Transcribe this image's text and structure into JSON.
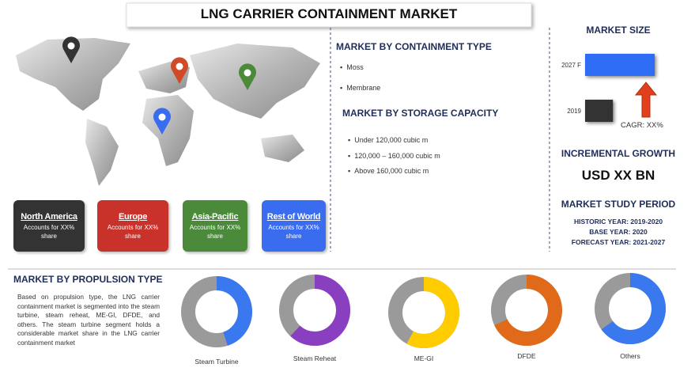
{
  "title": "LNG CARRIER CONTAINMENT MARKET",
  "regions": [
    {
      "name": "North America",
      "text": "Accounts for XX% share",
      "color": "#333333"
    },
    {
      "name": "Europe",
      "text": "Accounts for XX% share",
      "color": "#c8322a"
    },
    {
      "name": "Asia-Pacific",
      "text": "Accounts for XX% share",
      "color": "#4a8a3a"
    },
    {
      "name": "Rest of World",
      "text": "Accounts for XX% share",
      "color": "#3a6cf0"
    }
  ],
  "containment_type": {
    "heading": "MARKET BY CONTAINMENT TYPE",
    "items": [
      "Moss",
      "Membrane"
    ]
  },
  "storage_capacity": {
    "heading": "MARKET BY STORAGE CAPACITY",
    "items": [
      "Under 120,000 cubic m",
      "120,000 – 160,000 cubic m",
      "Above 160,000 cubic m"
    ]
  },
  "market_size": {
    "heading": "MARKET SIZE",
    "cagr": "CAGR: XX%",
    "chart_data": {
      "type": "bar",
      "categories": [
        "2027 F",
        "2019"
      ],
      "values": [
        100,
        40
      ],
      "xlim": [
        0,
        100
      ],
      "colors": [
        "#2f6cf5",
        "#333333"
      ]
    }
  },
  "incremental_growth": {
    "heading": "INCREMENTAL GROWTH",
    "value": "USD XX BN"
  },
  "study_period": {
    "heading": "MARKET STUDY PERIOD",
    "lines": [
      "HISTORIC YEAR: 2019-2020",
      "BASE YEAR: 2020",
      "FORECAST YEAR: 2021-2027"
    ]
  },
  "propulsion": {
    "heading": "MARKET BY PROPULSION TYPE",
    "text": "Based on propulsion type, the LNG carrier containment market is segmented into the steam turbine, steam reheat, ME-GI, DFDE, and others. The steam turbine segment holds a considerable market share in the LNG carrier containment market",
    "chart_data": {
      "type": "donut",
      "categories": [
        "Steam Turbine",
        "Steam Reheat",
        "ME-GI",
        "DFDE",
        "Others"
      ],
      "values": [
        45,
        62,
        58,
        68,
        65
      ],
      "colors": [
        "#3a78f0",
        "#8a3ec0",
        "#ffcc00",
        "#e06a1a",
        "#3a78f0"
      ]
    }
  }
}
